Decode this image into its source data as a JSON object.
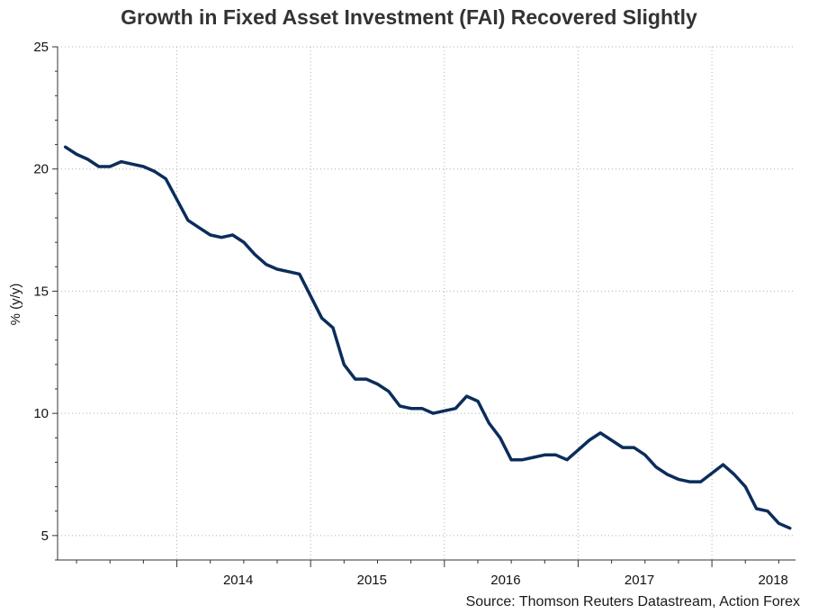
{
  "title": "Growth in Fixed Asset Investment (FAI) Recovered Slightly",
  "source": "Source: Thomson Reuters Datastream, Action Forex",
  "colors": {
    "line": "#0b2d5b",
    "grid": "#b0b0b0",
    "axis": "#333333"
  },
  "chart_data": {
    "type": "line",
    "title": "Growth in Fixed Asset Investment (FAI) Recovered Slightly",
    "xlabel": "",
    "ylabel": "% (y/y)",
    "ylim": [
      4,
      25
    ],
    "xlim": [
      "2013-03",
      "2018-08"
    ],
    "y_ticks": [
      5,
      10,
      15,
      20,
      25
    ],
    "x_tick_labels": [
      "2014",
      "2015",
      "2016",
      "2017",
      "2018"
    ],
    "grid": true,
    "legend": "none",
    "series": [
      {
        "x": [
          "2013-03",
          "2013-04",
          "2013-05",
          "2013-06",
          "2013-07",
          "2013-08",
          "2013-09",
          "2013-10",
          "2013-11",
          "2013-12",
          "2014-02",
          "2014-03",
          "2014-04",
          "2014-05",
          "2014-06",
          "2014-07",
          "2014-08",
          "2014-09",
          "2014-10",
          "2014-11",
          "2014-12",
          "2015-02",
          "2015-03",
          "2015-04",
          "2015-05",
          "2015-06",
          "2015-07",
          "2015-08",
          "2015-09",
          "2015-10",
          "2015-11",
          "2015-12",
          "2016-02",
          "2016-03",
          "2016-04",
          "2016-05",
          "2016-06",
          "2016-07",
          "2016-08",
          "2016-09",
          "2016-10",
          "2016-11",
          "2016-12",
          "2017-02",
          "2017-03",
          "2017-04",
          "2017-05",
          "2017-06",
          "2017-07",
          "2017-08",
          "2017-09",
          "2017-10",
          "2017-11",
          "2017-12",
          "2018-02",
          "2018-03",
          "2018-04",
          "2018-05",
          "2018-06",
          "2018-07",
          "2018-08"
        ],
        "values": [
          20.9,
          20.6,
          20.4,
          20.1,
          20.1,
          20.3,
          20.2,
          20.1,
          19.9,
          19.6,
          17.9,
          17.6,
          17.3,
          17.2,
          17.3,
          17.0,
          16.5,
          16.1,
          15.9,
          15.8,
          15.7,
          13.9,
          13.5,
          12.0,
          11.4,
          11.4,
          11.2,
          10.9,
          10.3,
          10.2,
          10.2,
          10.0,
          10.2,
          10.7,
          10.5,
          9.6,
          9.0,
          8.1,
          8.1,
          8.2,
          8.3,
          8.3,
          8.1,
          8.9,
          9.2,
          8.9,
          8.6,
          8.6,
          8.3,
          7.8,
          7.5,
          7.3,
          7.2,
          7.2,
          7.9,
          7.5,
          7.0,
          6.1,
          6.0,
          5.5,
          5.3
        ]
      }
    ]
  }
}
